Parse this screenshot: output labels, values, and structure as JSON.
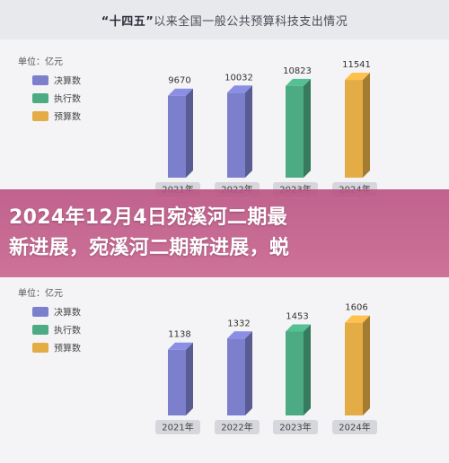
{
  "page": {
    "title_bold": "“十四五”",
    "title_rest": "以来全国一般公共预算科技支出情况",
    "headline_line1": "2024年12月4日宛溪河二期最",
    "headline_line2": "新进展，宛溪河二期新进展，蜕"
  },
  "colors": {
    "final": "#7b7fcc",
    "executed": "#4cab82",
    "budget": "#e3ac45",
    "overlay": "#c0588a"
  },
  "chart_data": [
    {
      "type": "bar",
      "unit": "单位：亿元",
      "legend": [
        "决算数",
        "执行数",
        "预算数"
      ],
      "categories": [
        "2021年",
        "2022年",
        "2023年",
        "2024年"
      ],
      "values": [
        9670,
        10032,
        10823,
        11541
      ],
      "series_type": [
        "final",
        "final",
        "executed",
        "budget"
      ],
      "ylim": [
        0,
        12500
      ]
    },
    {
      "type": "bar",
      "unit": "单位：亿元",
      "legend": [
        "决算数",
        "执行数",
        "预算数"
      ],
      "categories": [
        "2021年",
        "2022年",
        "2023年",
        "2024年"
      ],
      "values": [
        1138,
        1332,
        1453,
        1606
      ],
      "series_type": [
        "final",
        "final",
        "executed",
        "budget"
      ],
      "ylim": [
        0,
        1740
      ]
    }
  ]
}
